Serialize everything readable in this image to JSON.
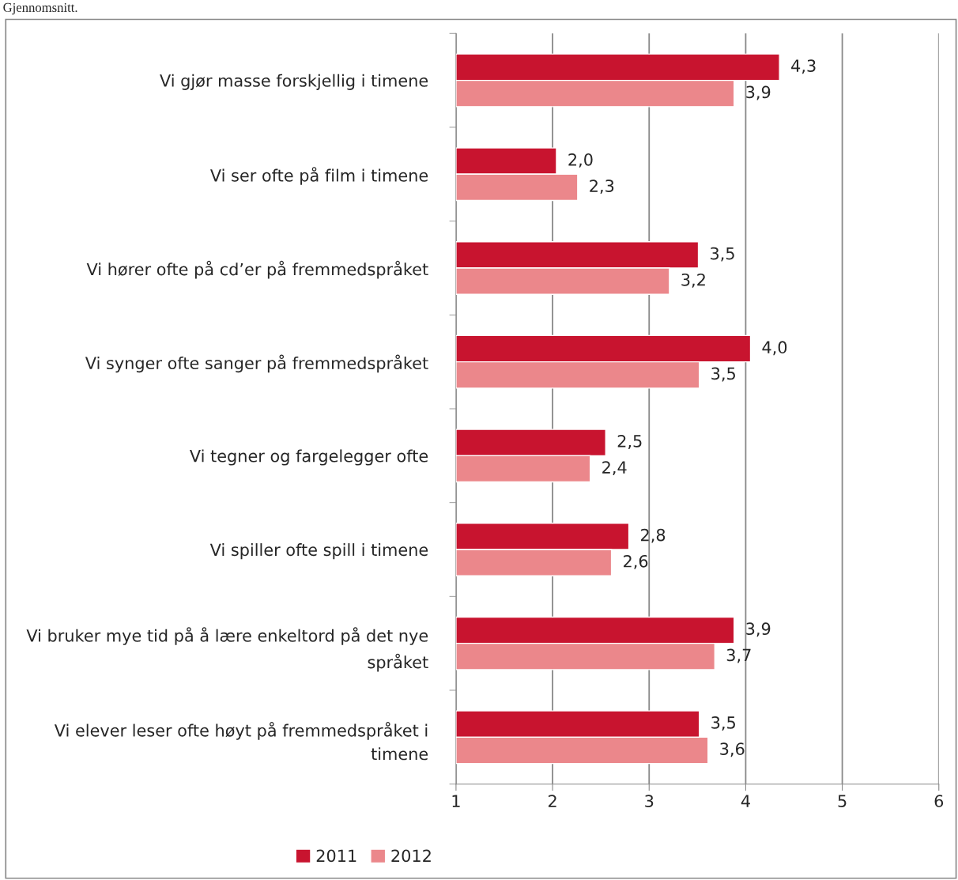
{
  "chart_data": {
    "type": "bar",
    "orientation": "horizontal",
    "title": "Gjennomsnitt.",
    "categories": [
      "Vi gjør masse forskjellig i timene",
      "Vi ser ofte på film i timene",
      "Vi hører ofte på cd’er på fremmedspråket",
      "Vi synger ofte sanger på fremmedspråket",
      "Vi tegner og fargelegger ofte",
      "Vi spiller ofte spill i timene",
      "Vi bruker mye tid på å lære enkeltord på det nye\nspråket",
      "Vi elever leser ofte høyt på fremmedspråket i\ntimene"
    ],
    "series": [
      {
        "name": "2011",
        "color": "#c8142f",
        "values": [
          4.35,
          2.04,
          3.51,
          4.05,
          2.55,
          2.79,
          3.88,
          3.52
        ],
        "value_labels": [
          "4,3",
          "2,0",
          "3,5",
          "4,0",
          "2,5",
          "2,8",
          "3,9",
          "3,5"
        ]
      },
      {
        "name": "2012",
        "color": "#eb878b",
        "values": [
          3.88,
          2.26,
          3.21,
          3.52,
          2.39,
          2.61,
          3.68,
          3.61
        ],
        "value_labels": [
          "3,9",
          "2,3",
          "3,2",
          "3,5",
          "2,4",
          "2,6",
          "3,7",
          "3,6"
        ]
      }
    ],
    "xlim": [
      1,
      6
    ],
    "xticks": [
      1,
      2,
      3,
      4,
      5,
      6
    ],
    "grid": "x",
    "legend": "bottom"
  }
}
